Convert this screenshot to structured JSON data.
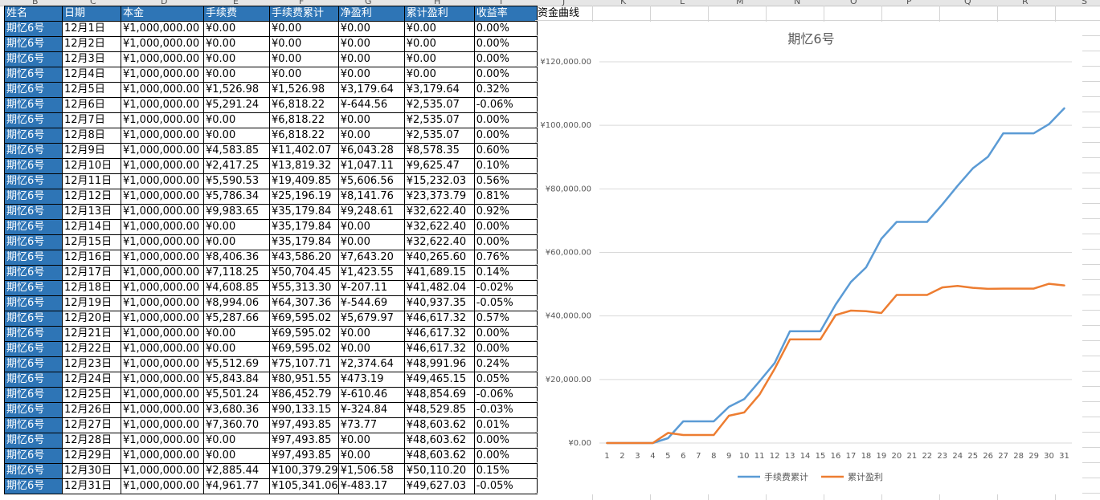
{
  "spreadsheet": {
    "column_letters": [
      "B",
      "C",
      "D",
      "E",
      "F",
      "G",
      "H",
      "I",
      "J",
      "K",
      "L",
      "M",
      "N",
      "O",
      "P",
      "Q",
      "R",
      "S"
    ],
    "headers": [
      "姓名",
      "日期",
      "本金",
      "手续费",
      "手续费累计",
      "净盈利",
      "累计盈利",
      "收益率"
    ],
    "rows": [
      [
        "期忆6号",
        "12月1日",
        "¥1,000,000.00",
        "¥0.00",
        "¥0.00",
        "¥0.00",
        "¥0.00",
        "0.00%"
      ],
      [
        "期忆6号",
        "12月2日",
        "¥1,000,000.00",
        "¥0.00",
        "¥0.00",
        "¥0.00",
        "¥0.00",
        "0.00%"
      ],
      [
        "期忆6号",
        "12月3日",
        "¥1,000,000.00",
        "¥0.00",
        "¥0.00",
        "¥0.00",
        "¥0.00",
        "0.00%"
      ],
      [
        "期忆6号",
        "12月4日",
        "¥1,000,000.00",
        "¥0.00",
        "¥0.00",
        "¥0.00",
        "¥0.00",
        "0.00%"
      ],
      [
        "期忆6号",
        "12月5日",
        "¥1,000,000.00",
        "¥1,526.98",
        "¥1,526.98",
        "¥3,179.64",
        "¥3,179.64",
        "0.32%"
      ],
      [
        "期忆6号",
        "12月6日",
        "¥1,000,000.00",
        "¥5,291.24",
        "¥6,818.22",
        "¥-644.56",
        "¥2,535.07",
        "-0.06%"
      ],
      [
        "期忆6号",
        "12月7日",
        "¥1,000,000.00",
        "¥0.00",
        "¥6,818.22",
        "¥0.00",
        "¥2,535.07",
        "0.00%"
      ],
      [
        "期忆6号",
        "12月8日",
        "¥1,000,000.00",
        "¥0.00",
        "¥6,818.22",
        "¥0.00",
        "¥2,535.07",
        "0.00%"
      ],
      [
        "期忆6号",
        "12月9日",
        "¥1,000,000.00",
        "¥4,583.85",
        "¥11,402.07",
        "¥6,043.28",
        "¥8,578.35",
        "0.60%"
      ],
      [
        "期忆6号",
        "12月10日",
        "¥1,000,000.00",
        "¥2,417.25",
        "¥13,819.32",
        "¥1,047.11",
        "¥9,625.47",
        "0.10%"
      ],
      [
        "期忆6号",
        "12月11日",
        "¥1,000,000.00",
        "¥5,590.53",
        "¥19,409.85",
        "¥5,606.56",
        "¥15,232.03",
        "0.56%"
      ],
      [
        "期忆6号",
        "12月12日",
        "¥1,000,000.00",
        "¥5,786.34",
        "¥25,196.19",
        "¥8,141.76",
        "¥23,373.79",
        "0.81%"
      ],
      [
        "期忆6号",
        "12月13日",
        "¥1,000,000.00",
        "¥9,983.65",
        "¥35,179.84",
        "¥9,248.61",
        "¥32,622.40",
        "0.92%"
      ],
      [
        "期忆6号",
        "12月14日",
        "¥1,000,000.00",
        "¥0.00",
        "¥35,179.84",
        "¥0.00",
        "¥32,622.40",
        "0.00%"
      ],
      [
        "期忆6号",
        "12月15日",
        "¥1,000,000.00",
        "¥0.00",
        "¥35,179.84",
        "¥0.00",
        "¥32,622.40",
        "0.00%"
      ],
      [
        "期忆6号",
        "12月16日",
        "¥1,000,000.00",
        "¥8,406.36",
        "¥43,586.20",
        "¥7,643.20",
        "¥40,265.60",
        "0.76%"
      ],
      [
        "期忆6号",
        "12月17日",
        "¥1,000,000.00",
        "¥7,118.25",
        "¥50,704.45",
        "¥1,423.55",
        "¥41,689.15",
        "0.14%"
      ],
      [
        "期忆6号",
        "12月18日",
        "¥1,000,000.00",
        "¥4,608.85",
        "¥55,313.30",
        "¥-207.11",
        "¥41,482.04",
        "-0.02%"
      ],
      [
        "期忆6号",
        "12月19日",
        "¥1,000,000.00",
        "¥8,994.06",
        "¥64,307.36",
        "¥-544.69",
        "¥40,937.35",
        "-0.05%"
      ],
      [
        "期忆6号",
        "12月20日",
        "¥1,000,000.00",
        "¥5,287.66",
        "¥69,595.02",
        "¥5,679.97",
        "¥46,617.32",
        "0.57%"
      ],
      [
        "期忆6号",
        "12月21日",
        "¥1,000,000.00",
        "¥0.00",
        "¥69,595.02",
        "¥0.00",
        "¥46,617.32",
        "0.00%"
      ],
      [
        "期忆6号",
        "12月22日",
        "¥1,000,000.00",
        "¥0.00",
        "¥69,595.02",
        "¥0.00",
        "¥46,617.32",
        "0.00%"
      ],
      [
        "期忆6号",
        "12月23日",
        "¥1,000,000.00",
        "¥5,512.69",
        "¥75,107.71",
        "¥2,374.64",
        "¥48,991.96",
        "0.24%"
      ],
      [
        "期忆6号",
        "12月24日",
        "¥1,000,000.00",
        "¥5,843.84",
        "¥80,951.55",
        "¥473.19",
        "¥49,465.15",
        "0.05%"
      ],
      [
        "期忆6号",
        "12月25日",
        "¥1,000,000.00",
        "¥5,501.24",
        "¥86,452.79",
        "¥-610.46",
        "¥48,854.69",
        "-0.06%"
      ],
      [
        "期忆6号",
        "12月26日",
        "¥1,000,000.00",
        "¥3,680.36",
        "¥90,133.15",
        "¥-324.84",
        "¥48,529.85",
        "-0.03%"
      ],
      [
        "期忆6号",
        "12月27日",
        "¥1,000,000.00",
        "¥7,360.70",
        "¥97,493.85",
        "¥73.77",
        "¥48,603.62",
        "0.01%"
      ],
      [
        "期忆6号",
        "12月28日",
        "¥1,000,000.00",
        "¥0.00",
        "¥97,493.85",
        "¥0.00",
        "¥48,603.62",
        "0.00%"
      ],
      [
        "期忆6号",
        "12月29日",
        "¥1,000,000.00",
        "¥0.00",
        "¥97,493.85",
        "¥0.00",
        "¥48,603.62",
        "0.00%"
      ],
      [
        "期忆6号",
        "12月30日",
        "¥1,000,000.00",
        "¥2,885.44",
        "¥100,379.29",
        "¥1,506.58",
        "¥50,110.20",
        "0.15%"
      ],
      [
        "期忆6号",
        "12月31日",
        "¥1,000,000.00",
        "¥4,961.77",
        "¥105,341.06",
        "¥-483.17",
        "¥49,627.03",
        "-0.05%"
      ]
    ]
  },
  "chart_label_cell": "资金曲线",
  "chart_data": {
    "type": "line",
    "title": "期忆6号",
    "x": [
      1,
      2,
      3,
      4,
      5,
      6,
      7,
      8,
      9,
      10,
      11,
      12,
      13,
      14,
      15,
      16,
      17,
      18,
      19,
      20,
      21,
      22,
      23,
      24,
      25,
      26,
      27,
      28,
      29,
      30,
      31
    ],
    "ylim": [
      0,
      120000
    ],
    "yticks": [
      0,
      20000,
      40000,
      60000,
      80000,
      100000,
      120000
    ],
    "ytick_labels": [
      "¥0.00",
      "¥20,000.00",
      "¥40,000.00",
      "¥60,000.00",
      "¥80,000.00",
      "¥100,000.00",
      "¥120,000.00"
    ],
    "grid": true,
    "legend_position": "bottom",
    "series": [
      {
        "name": "手续费累计",
        "color": "#5b9bd5",
        "values": [
          0,
          0,
          0,
          0,
          1526.98,
          6818.22,
          6818.22,
          6818.22,
          11402.07,
          13819.32,
          19409.85,
          25196.19,
          35179.84,
          35179.84,
          35179.84,
          43586.2,
          50704.45,
          55313.3,
          64307.36,
          69595.02,
          69595.02,
          69595.02,
          75107.71,
          80951.55,
          86452.79,
          90133.15,
          97493.85,
          97493.85,
          97493.85,
          100379.29,
          105341.06
        ]
      },
      {
        "name": "累计盈利",
        "color": "#ed7d31",
        "values": [
          0,
          0,
          0,
          0,
          3179.64,
          2535.07,
          2535.07,
          2535.07,
          8578.35,
          9625.47,
          15232.03,
          23373.79,
          32622.4,
          32622.4,
          32622.4,
          40265.6,
          41689.15,
          41482.04,
          40937.35,
          46617.32,
          46617.32,
          46617.32,
          48991.96,
          49465.15,
          48854.69,
          48529.85,
          48603.62,
          48603.62,
          48603.62,
          50110.2,
          49627.03
        ]
      }
    ]
  }
}
